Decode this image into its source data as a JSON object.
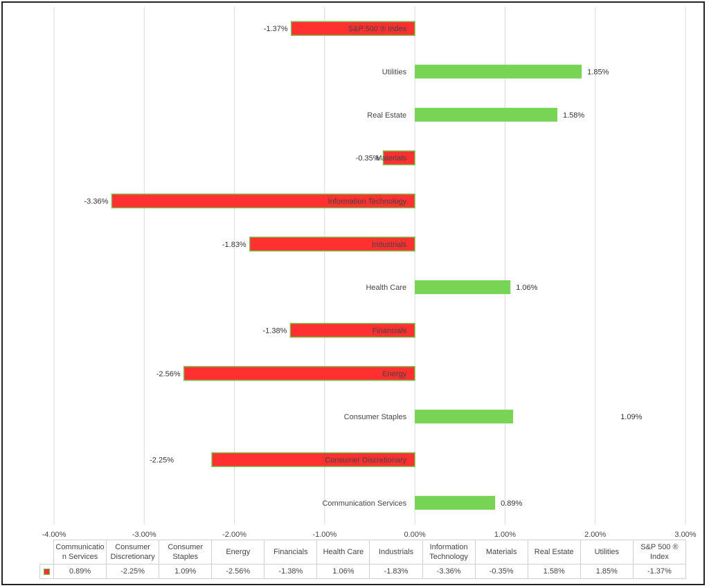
{
  "chart_data": {
    "type": "bar",
    "orientation": "horizontal",
    "categories": [
      "Communication Services",
      "Consumer Discretionary",
      "Consumer Staples",
      "Energy",
      "Financials",
      "Health Care",
      "Industrials",
      "Information Technology",
      "Materials",
      "Real Estate",
      "Utilities",
      "S&P 500 ® Index"
    ],
    "values": [
      0.89,
      -2.25,
      1.09,
      -2.56,
      -1.38,
      1.06,
      -1.83,
      -3.36,
      -0.35,
      1.58,
      1.85,
      -1.37
    ],
    "value_labels": [
      "0.89%",
      "-2.25%",
      "1.09%",
      "-2.56%",
      "-1.38%",
      "1.06%",
      "-1.83%",
      "-3.36%",
      "-0.35%",
      "1.58%",
      "1.85%",
      "-1.37%"
    ],
    "xlim": [
      -4,
      3
    ],
    "xticks": [
      -4,
      -3,
      -2,
      -1,
      0,
      1,
      2,
      3
    ],
    "xtick_labels": [
      "-4.00%",
      "-3.00%",
      "-2.00%",
      "-1.00%",
      "0.00%",
      "1.00%",
      "2.00%",
      "3.00%"
    ],
    "grid": "vertical",
    "colors": {
      "positive": "#77d454",
      "negative": "#ff3030",
      "negative_border": "#7cc24f",
      "grid": "#d9d9d9"
    },
    "data_table": {
      "headers": [
        "Communicatio n Services",
        "Consumer Discretionary",
        "Consumer Staples",
        "Energy",
        "Financials",
        "Health Care",
        "Industrials",
        "Information Technology",
        "Materials",
        "Real Estate",
        "Utilities",
        "S&P 500 ® Index"
      ],
      "values": [
        "0.89%",
        "-2.25%",
        "1.09%",
        "-2.56%",
        "-1.38%",
        "1.06%",
        "-1.83%",
        "-3.36%",
        "-0.35%",
        "1.58%",
        "1.85%",
        "-1.37%"
      ]
    }
  }
}
